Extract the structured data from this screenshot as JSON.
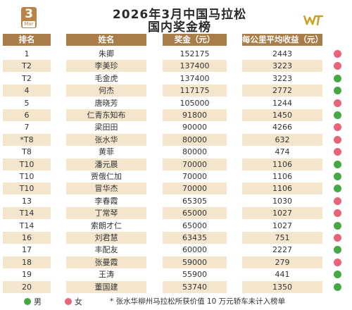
{
  "calendar": {
    "day": "3",
    "month": "Mar"
  },
  "title": {
    "line1": "2026年3月中国马拉松",
    "line2": "国内奖金榜"
  },
  "header": {
    "rank": "排名",
    "name": "姓名",
    "prize": "奖金（元）",
    "per_km": "每公里平均收益（元）"
  },
  "colors": {
    "male": "#46a843",
    "female": "#e6657a",
    "header_bg": "#a87d4a",
    "stripe": "#f4e6cc"
  },
  "rows": [
    {
      "rank": "1",
      "name": "朱卿",
      "prize": "152175",
      "per_km": "2443",
      "gender": "female"
    },
    {
      "rank": "T2",
      "name": "李美珍",
      "prize": "137400",
      "per_km": "3223",
      "gender": "female"
    },
    {
      "rank": "T2",
      "name": "毛金虎",
      "prize": "137400",
      "per_km": "3223",
      "gender": "male"
    },
    {
      "rank": "4",
      "name": "何杰",
      "prize": "117175",
      "per_km": "2772",
      "gender": "male"
    },
    {
      "rank": "5",
      "name": "唐晓芳",
      "prize": "105000",
      "per_km": "1244",
      "gender": "female"
    },
    {
      "rank": "6",
      "name": "仁青东知布",
      "prize": "91800",
      "per_km": "1450",
      "gender": "male"
    },
    {
      "rank": "7",
      "name": "梁田田",
      "prize": "90000",
      "per_km": "4266",
      "gender": "female"
    },
    {
      "rank": "*T8",
      "name": "张水华",
      "prize": "80000",
      "per_km": "632",
      "gender": "female"
    },
    {
      "rank": "T8",
      "name": "黄菲",
      "prize": "80000",
      "per_km": "474",
      "gender": "female"
    },
    {
      "rank": "T10",
      "name": "潘元晨",
      "prize": "70000",
      "per_km": "1106",
      "gender": "male"
    },
    {
      "rank": "T10",
      "name": "贾俄仁加",
      "prize": "70000",
      "per_km": "1106",
      "gender": "male"
    },
    {
      "rank": "T10",
      "name": "冒华杰",
      "prize": "70000",
      "per_km": "1106",
      "gender": "male"
    },
    {
      "rank": "13",
      "name": "李春霞",
      "prize": "65305",
      "per_km": "1030",
      "gender": "female"
    },
    {
      "rank": "T14",
      "name": "丁常琴",
      "prize": "65000",
      "per_km": "1027",
      "gender": "female"
    },
    {
      "rank": "T14",
      "name": "索朗才仁",
      "prize": "65000",
      "per_km": "1027",
      "gender": "male"
    },
    {
      "rank": "16",
      "name": "刘君慧",
      "prize": "63435",
      "per_km": "751",
      "gender": "female"
    },
    {
      "rank": "17",
      "name": "丰配友",
      "prize": "60000",
      "per_km": "2227",
      "gender": "male"
    },
    {
      "rank": "18",
      "name": "张曼霞",
      "prize": "59000",
      "per_km": "279",
      "gender": "female"
    },
    {
      "rank": "19",
      "name": "王涛",
      "prize": "55900",
      "per_km": "441",
      "gender": "male"
    },
    {
      "rank": "20",
      "name": "董国建",
      "prize": "53740",
      "per_km": "1350",
      "gender": "male"
    }
  ],
  "legend": {
    "male": "男",
    "female": "女",
    "note": "* 张水华柳州马拉松所获价值 10 万元轿车未计入榜单"
  }
}
